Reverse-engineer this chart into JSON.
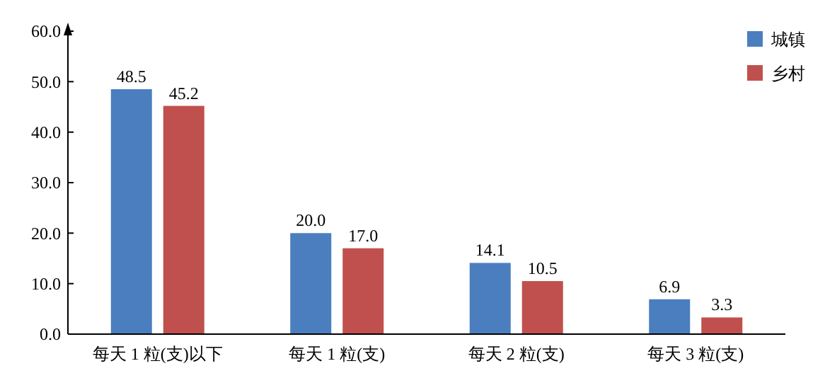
{
  "chart_data": {
    "type": "bar",
    "categories": [
      "每天 1 粒(支)以下",
      "每天 1 粒(支)",
      "每天 2 粒(支)",
      "每天 3 粒(支)"
    ],
    "series": [
      {
        "name": "城镇",
        "color": "#4a7ebf",
        "values": [
          48.5,
          20.0,
          14.1,
          6.9
        ],
        "value_labels": [
          "48.5",
          "20.0",
          "14.1",
          "6.9"
        ]
      },
      {
        "name": "乡村",
        "color": "#c0504d",
        "values": [
          45.2,
          17.0,
          10.5,
          3.3
        ],
        "value_labels": [
          "45.2",
          "17.0",
          "10.5",
          "3.3"
        ]
      }
    ],
    "ylim": [
      0,
      60
    ],
    "yticks": [
      {
        "value": 0,
        "label": "0.0"
      },
      {
        "value": 10,
        "label": "10.0"
      },
      {
        "value": 20,
        "label": "20.0"
      },
      {
        "value": 30,
        "label": "30.0"
      },
      {
        "value": 40,
        "label": "40.0"
      },
      {
        "value": 50,
        "label": "50.0"
      },
      {
        "value": 60,
        "label": "60.0"
      }
    ],
    "legend": "top right",
    "grid": false
  }
}
